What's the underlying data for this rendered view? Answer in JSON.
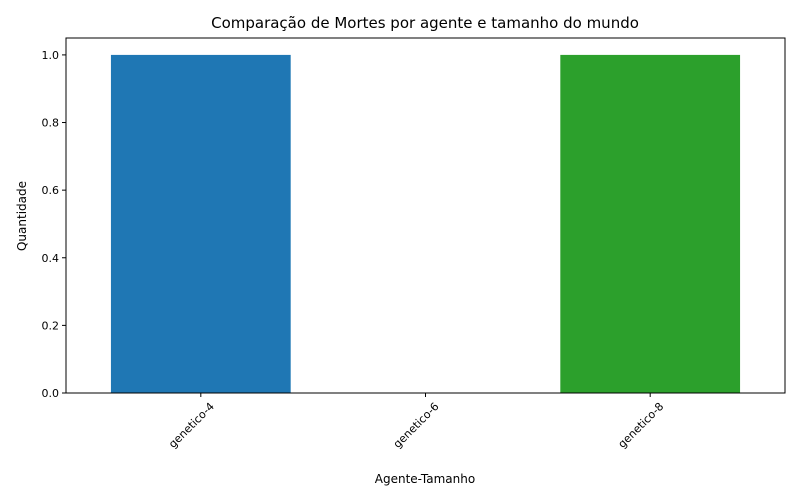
{
  "chart_data": {
    "type": "bar",
    "title": "Comparação de Mortes por agente e tamanho do mundo",
    "xlabel": "Agente-Tamanho",
    "ylabel": "Quantidade",
    "categories": [
      "genetico-4",
      "genetico-6",
      "genetico-8"
    ],
    "values": [
      1,
      0,
      1
    ],
    "colors": [
      "#1f77b4",
      "#ff7f0e",
      "#2ca02c"
    ],
    "ylim": [
      0,
      1.05
    ],
    "yticks": [
      "0.0",
      "0.2",
      "0.4",
      "0.6",
      "0.8",
      "1.0"
    ],
    "grid": false,
    "legend": "none"
  }
}
